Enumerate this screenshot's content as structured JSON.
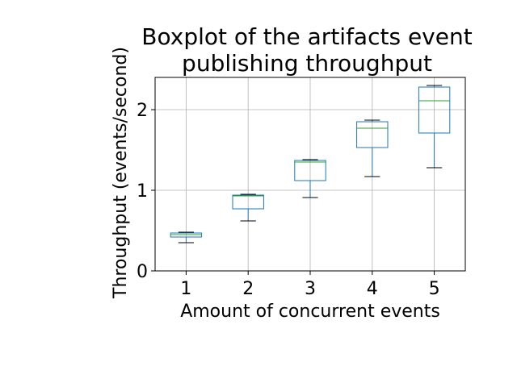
{
  "chart_data": {
    "type": "boxplot",
    "title": "Boxplot of the artifacts event\npublishing throughput",
    "xlabel": "Amount of concurrent events",
    "ylabel": "Throughput (events/second)",
    "grid": true,
    "ylim": [
      0,
      2.4
    ],
    "xlim": [
      0.5,
      5.5
    ],
    "yticks": [
      0,
      1,
      2
    ],
    "categories": [
      "1",
      "2",
      "3",
      "4",
      "5"
    ],
    "boxes": [
      {
        "category": "1",
        "whisker_low": 0.35,
        "q1": 0.42,
        "median": 0.45,
        "q3": 0.47,
        "whisker_high": 0.48
      },
      {
        "category": "2",
        "whisker_low": 0.62,
        "q1": 0.77,
        "median": 0.93,
        "q3": 0.94,
        "whisker_high": 0.95
      },
      {
        "category": "3",
        "whisker_low": 0.91,
        "q1": 1.12,
        "median": 1.35,
        "q3": 1.37,
        "whisker_high": 1.38
      },
      {
        "category": "4",
        "whisker_low": 1.17,
        "q1": 1.53,
        "median": 1.77,
        "q3": 1.85,
        "whisker_high": 1.87
      },
      {
        "category": "5",
        "whisker_low": 1.28,
        "q1": 1.71,
        "median": 2.11,
        "q3": 2.28,
        "whisker_high": 2.3
      }
    ],
    "colors": {
      "box": "#1f77b4",
      "median": "#2ca02c",
      "whisker_cap": "#000000",
      "grid": "#b0b0b0"
    }
  }
}
